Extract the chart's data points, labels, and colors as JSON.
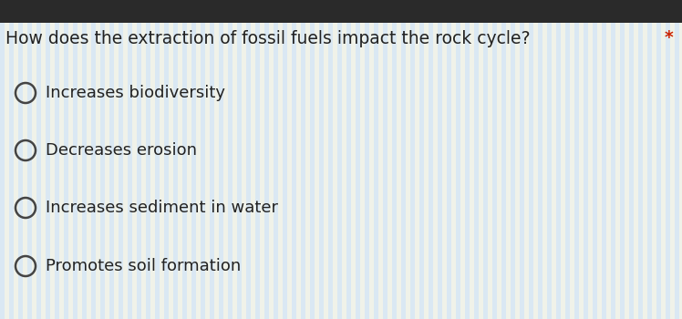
{
  "question": "How does the extraction of fossil fuels impact the rock cycle?",
  "asterisk": "*",
  "options": [
    "Increases biodiversity",
    "Decreases erosion",
    "Increases sediment in water",
    "Promotes soil formation"
  ],
  "background_top": "#2a2a2a",
  "background_base": "#e8f0f5",
  "stripe_color_a": "#c8dff0",
  "stripe_color_b": "#f0f0d8",
  "question_color": "#222222",
  "asterisk_color": "#cc2200",
  "option_color": "#222222",
  "circle_edge_color": "#444444",
  "question_fontsize": 13.5,
  "option_fontsize": 13.0,
  "figwidth": 7.48,
  "figheight": 3.5,
  "dpi": 100
}
